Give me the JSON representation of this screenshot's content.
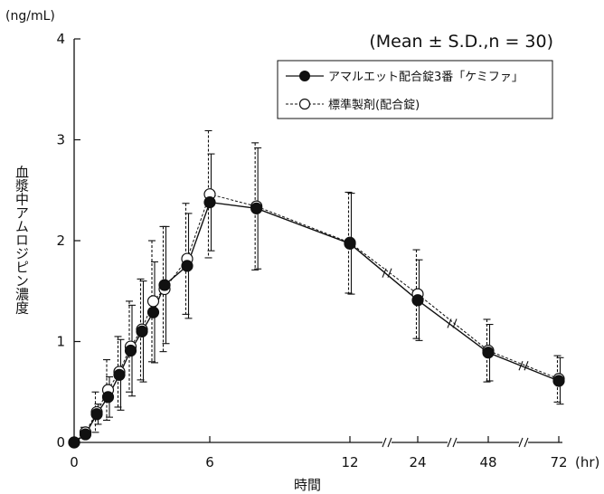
{
  "chart_data": {
    "type": "line",
    "annotation": "(Mean ± S.D.,n = 30)",
    "xlabel": "時間",
    "ylabel": "血漿中アムロジピン濃度",
    "y_unit": "(ng/mL)",
    "x_unit": "(hr)",
    "ylim": [
      0,
      4
    ],
    "y_ticks": [
      0,
      1,
      2,
      3,
      4
    ],
    "x_ticks": [
      0,
      6,
      12,
      24,
      48,
      72
    ],
    "x_breaks": [
      "12-24",
      "24-48",
      "48-72"
    ],
    "grid": false,
    "legend_position": "top-right",
    "legend_border": "#111111",
    "series": [
      {
        "name": "アマルエット配合錠3番「ケミファ」",
        "marker": "filled-circle",
        "line_style": "solid",
        "color": "#111111",
        "points": [
          {
            "x": 0,
            "y": 0.0,
            "sd": 0.0
          },
          {
            "x": 0.5,
            "y": 0.08,
            "sd": 0.03
          },
          {
            "x": 1,
            "y": 0.28,
            "sd": 0.1
          },
          {
            "x": 1.5,
            "y": 0.45,
            "sd": 0.2
          },
          {
            "x": 2,
            "y": 0.67,
            "sd": 0.35
          },
          {
            "x": 2.5,
            "y": 0.91,
            "sd": 0.45
          },
          {
            "x": 3,
            "y": 1.1,
            "sd": 0.5
          },
          {
            "x": 3.5,
            "y": 1.29,
            "sd": 0.5
          },
          {
            "x": 4,
            "y": 1.56,
            "sd": 0.58
          },
          {
            "x": 5,
            "y": 1.75,
            "sd": 0.52
          },
          {
            "x": 6,
            "y": 2.38,
            "sd": 0.48
          },
          {
            "x": 8,
            "y": 2.32,
            "sd": 0.6
          },
          {
            "x": 12,
            "y": 1.97,
            "sd": 0.5
          },
          {
            "x": 24,
            "y": 1.41,
            "sd": 0.4
          },
          {
            "x": 48,
            "y": 0.89,
            "sd": 0.28
          },
          {
            "x": 72,
            "y": 0.61,
            "sd": 0.23
          }
        ]
      },
      {
        "name": "標準製剤(配合錠)",
        "marker": "open-circle",
        "line_style": "dashed",
        "color": "#111111",
        "points": [
          {
            "x": 0,
            "y": 0.0,
            "sd": 0.0
          },
          {
            "x": 0.5,
            "y": 0.1,
            "sd": 0.05
          },
          {
            "x": 1,
            "y": 0.3,
            "sd": 0.2
          },
          {
            "x": 1.5,
            "y": 0.52,
            "sd": 0.3
          },
          {
            "x": 2,
            "y": 0.7,
            "sd": 0.35
          },
          {
            "x": 2.5,
            "y": 0.95,
            "sd": 0.45
          },
          {
            "x": 3,
            "y": 1.12,
            "sd": 0.5
          },
          {
            "x": 3.5,
            "y": 1.4,
            "sd": 0.6
          },
          {
            "x": 4,
            "y": 1.52,
            "sd": 0.62
          },
          {
            "x": 5,
            "y": 1.82,
            "sd": 0.55
          },
          {
            "x": 6,
            "y": 2.46,
            "sd": 0.63
          },
          {
            "x": 8,
            "y": 2.34,
            "sd": 0.63
          },
          {
            "x": 12,
            "y": 1.98,
            "sd": 0.5
          },
          {
            "x": 24,
            "y": 1.47,
            "sd": 0.44
          },
          {
            "x": 48,
            "y": 0.91,
            "sd": 0.31
          },
          {
            "x": 72,
            "y": 0.63,
            "sd": 0.23
          }
        ]
      }
    ]
  }
}
